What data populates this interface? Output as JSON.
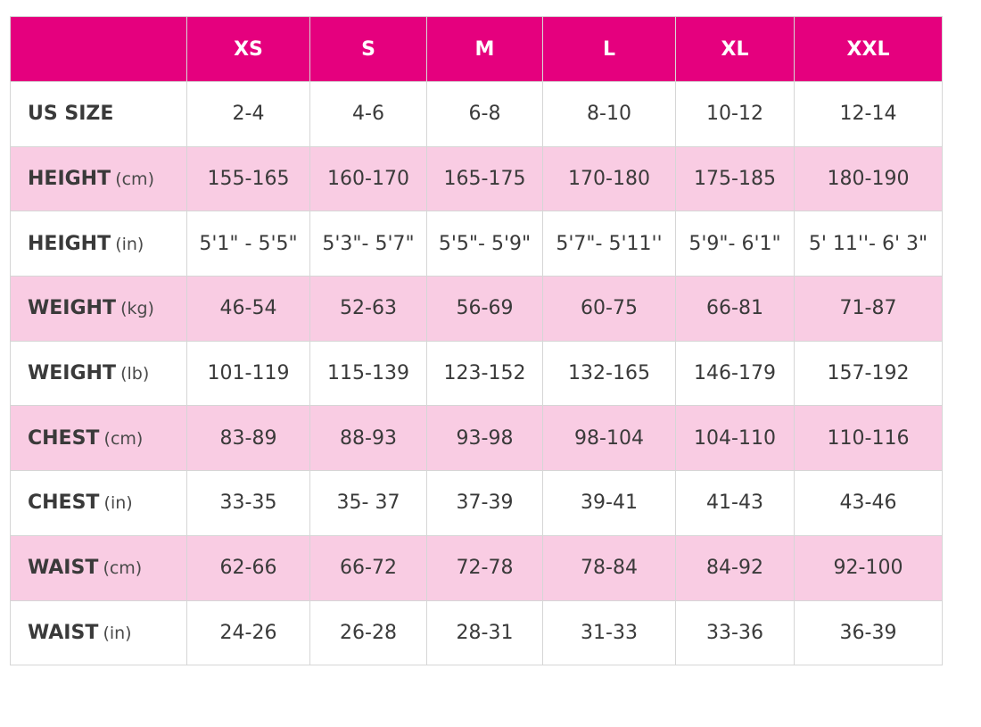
{
  "colors": {
    "header_bg": "#e5007e",
    "header_text": "#ffffff",
    "shaded_row_bg": "#f9cce3",
    "plain_row_bg": "#ffffff",
    "body_text": "#3a3a3a"
  },
  "table": {
    "corner": "",
    "sizes": [
      "XS",
      "S",
      "M",
      "L",
      "XL",
      "XXL"
    ],
    "rows": [
      {
        "label": "US SIZE",
        "unit": "",
        "values": [
          "2-4",
          "4-6",
          "6-8",
          "8-10",
          "10-12",
          "12-14"
        ]
      },
      {
        "label": "HEIGHT",
        "unit": "(cm)",
        "values": [
          "155-165",
          "160-170",
          "165-175",
          "170-180",
          "175-185",
          "180-190"
        ]
      },
      {
        "label": "HEIGHT",
        "unit": "(in)",
        "values": [
          "5'1\" - 5'5\"",
          "5'3\"- 5'7\"",
          "5'5\"- 5'9\"",
          "5'7\"- 5'11''",
          "5'9\"- 6'1\"",
          "5' 11''- 6' 3\""
        ]
      },
      {
        "label": "WEIGHT",
        "unit": "(kg)",
        "values": [
          "46-54",
          "52-63",
          "56-69",
          "60-75",
          "66-81",
          "71-87"
        ]
      },
      {
        "label": "WEIGHT",
        "unit": "(lb)",
        "values": [
          "101-119",
          "115-139",
          "123-152",
          "132-165",
          "146-179",
          "157-192"
        ]
      },
      {
        "label": "CHEST",
        "unit": "(cm)",
        "values": [
          "83-89",
          "88-93",
          "93-98",
          "98-104",
          "104-110",
          "110-116"
        ]
      },
      {
        "label": "CHEST",
        "unit": "(in)",
        "values": [
          "33-35",
          "35- 37",
          "37-39",
          "39-41",
          "41-43",
          "43-46"
        ]
      },
      {
        "label": "WAIST",
        "unit": "(cm)",
        "values": [
          "62-66",
          "66-72",
          "72-78",
          "78-84",
          "84-92",
          "92-100"
        ]
      },
      {
        "label": "WAIST",
        "unit": "(in)",
        "values": [
          "24-26",
          "26-28",
          "28-31",
          "31-33",
          "33-36",
          "36-39"
        ]
      }
    ]
  }
}
